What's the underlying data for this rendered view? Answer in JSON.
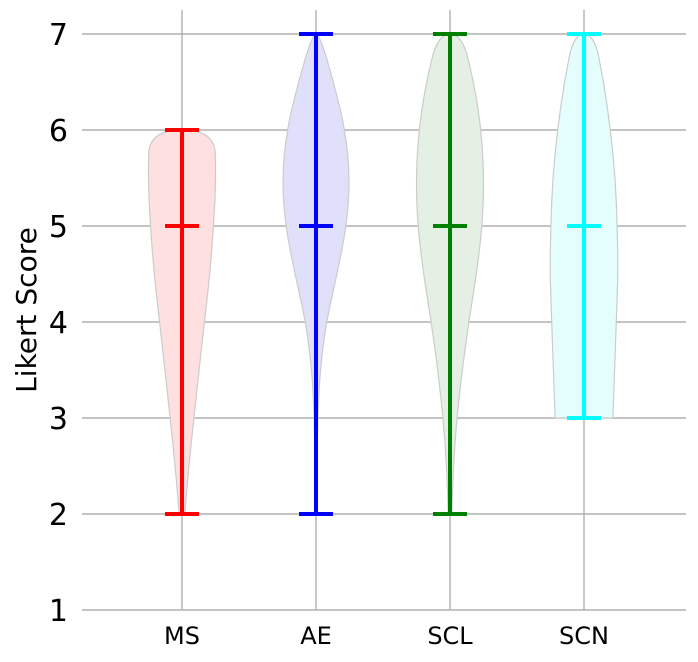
{
  "chart_data": {
    "type": "violin",
    "title": "",
    "xlabel": "",
    "ylabel": "Likert Score",
    "ylim": [
      1,
      7
    ],
    "yticks": [
      1,
      2,
      3,
      4,
      5,
      6,
      7
    ],
    "grid": true,
    "categories": [
      "MS",
      "AE",
      "SCL",
      "SCN"
    ],
    "series": [
      {
        "category": "MS",
        "color": "#ff0000",
        "fill": "#ffe0e0",
        "min": 2,
        "median": 5,
        "max": 6,
        "density": [
          [
            2,
            0.08
          ],
          [
            2.5,
            0.2
          ],
          [
            3,
            0.35
          ],
          [
            3.5,
            0.5
          ],
          [
            4,
            0.66
          ],
          [
            4.5,
            0.82
          ],
          [
            5,
            0.93
          ],
          [
            5.5,
            1.0
          ],
          [
            6,
            0.96
          ]
        ]
      },
      {
        "category": "AE",
        "color": "#0000ff",
        "fill": "#e0e0fb",
        "min": 2,
        "median": 5,
        "max": 7,
        "density": [
          [
            2,
            0.0
          ],
          [
            2.5,
            0.03
          ],
          [
            3,
            0.05
          ],
          [
            3.5,
            0.12
          ],
          [
            4,
            0.3
          ],
          [
            4.5,
            0.62
          ],
          [
            5,
            0.9
          ],
          [
            5.5,
            1.0
          ],
          [
            6,
            0.86
          ],
          [
            6.5,
            0.52
          ],
          [
            7,
            0.1
          ]
        ]
      },
      {
        "category": "SCL",
        "color": "#008000",
        "fill": "#e4f0e4",
        "min": 2,
        "median": 5,
        "max": 7,
        "density": [
          [
            2,
            0.05
          ],
          [
            2.5,
            0.1
          ],
          [
            3,
            0.2
          ],
          [
            3.5,
            0.36
          ],
          [
            4,
            0.55
          ],
          [
            4.5,
            0.78
          ],
          [
            5,
            0.95
          ],
          [
            5.5,
            1.0
          ],
          [
            6,
            0.92
          ],
          [
            6.5,
            0.7
          ],
          [
            7,
            0.35
          ]
        ]
      },
      {
        "category": "SCN",
        "color": "#00ffff",
        "fill": "#e4fdfd",
        "min": 3,
        "median": 5,
        "max": 7,
        "density": [
          [
            3,
            0.85
          ],
          [
            3.5,
            0.9
          ],
          [
            4,
            0.95
          ],
          [
            4.5,
            1.0
          ],
          [
            5,
            0.98
          ],
          [
            5.5,
            0.92
          ],
          [
            6,
            0.78
          ],
          [
            6.5,
            0.58
          ],
          [
            7,
            0.3
          ]
        ]
      }
    ]
  }
}
